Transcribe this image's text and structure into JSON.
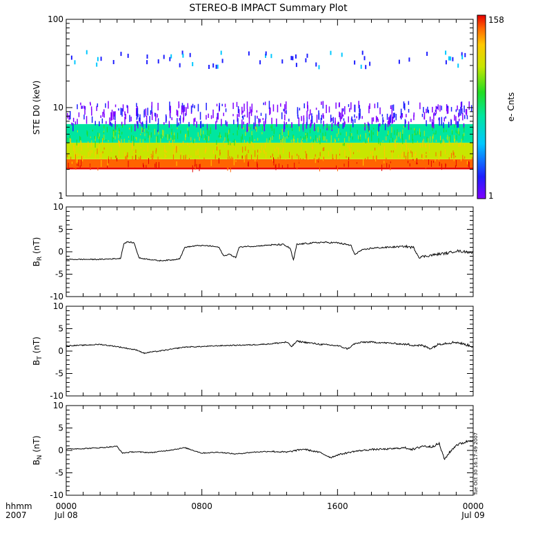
{
  "title": "STEREO-B IMPACT Summary Plot",
  "stamp": "Tue Oct 30 16:17:49 2007",
  "time_axis": {
    "row1_label": "hhmm",
    "row2_label": "2007",
    "ticks": [
      {
        "hour": 0,
        "time": "0000",
        "date": "Jul 08"
      },
      {
        "hour": 8,
        "time": "0800",
        "date": ""
      },
      {
        "hour": 16,
        "time": "1600",
        "date": ""
      },
      {
        "hour": 24,
        "time": "0000",
        "date": "Jul 09"
      }
    ],
    "range_hours": [
      0,
      24
    ]
  },
  "colorbar": {
    "label": "e- Cnts",
    "max_label": "158",
    "min_label": "1",
    "range": [
      1,
      158
    ]
  },
  "chart_data": [
    {
      "type": "heatmap",
      "ylabel": "STE D0 (keV)",
      "yscale": "log",
      "ylim": [
        1,
        100
      ],
      "yticks": [
        "1",
        "10",
        "100"
      ],
      "xlim_hours": [
        0,
        24
      ],
      "description_bands": [
        {
          "energy_keV": [
            2.0,
            2.1
          ],
          "counts": 158
        },
        {
          "energy_keV": [
            2.1,
            2.6
          ],
          "counts": 90
        },
        {
          "energy_keV": [
            2.6,
            4.0
          ],
          "counts": 30
        },
        {
          "energy_keV": [
            4.0,
            6.5
          ],
          "counts": 8
        },
        {
          "energy_keV": [
            6.5,
            12
          ],
          "counts": 2
        },
        {
          "energy_keV": [
            30,
            45
          ],
          "counts": 3
        }
      ]
    },
    {
      "type": "line",
      "ylabel": "B",
      "ylabel_sub": "R",
      "yunit": "(nT)",
      "ylim": [
        -10,
        10
      ],
      "yticks": [
        "-10",
        "-5",
        "0",
        "5",
        "10"
      ],
      "x_hours": [
        0,
        2,
        3.2,
        3.4,
        3.6,
        4.0,
        4.3,
        5.5,
        6.3,
        6.7,
        7.0,
        7.8,
        8.5,
        9.0,
        9.3,
        9.6,
        10.0,
        10.2,
        10.6,
        11.0,
        12.0,
        12.8,
        13.2,
        13.4,
        13.6,
        14.0,
        15.0,
        16.0,
        16.8,
        17.0,
        17.4,
        18.0,
        19.0,
        20.0,
        20.5,
        20.8,
        21.5,
        22.0,
        22.5,
        23.0,
        23.5,
        24.0
      ],
      "values": [
        -1.7,
        -1.7,
        -1.5,
        1.8,
        2.2,
        2.0,
        -1.4,
        -2.0,
        -1.8,
        -1.5,
        1.0,
        1.4,
        1.3,
        1.0,
        -1.0,
        -0.5,
        -1.3,
        1.0,
        1.2,
        1.2,
        1.5,
        1.6,
        0.8,
        -1.9,
        1.6,
        1.8,
        2.1,
        2.0,
        1.4,
        -0.6,
        0.3,
        0.8,
        1.0,
        1.2,
        0.9,
        -1.2,
        -0.8,
        -0.5,
        -0.3,
        0.2,
        0.0,
        -0.2
      ]
    },
    {
      "type": "line",
      "ylabel": "B",
      "ylabel_sub": "T",
      "yunit": "(nT)",
      "ylim": [
        -10,
        10
      ],
      "yticks": [
        "-10",
        "-5",
        "0",
        "5",
        "10"
      ],
      "x_hours": [
        0,
        1.0,
        2.0,
        3.0,
        3.6,
        4.2,
        4.6,
        5.0,
        5.5,
        6.0,
        7.0,
        8.0,
        9.0,
        10.0,
        11.0,
        12.0,
        13.0,
        13.3,
        13.6,
        14.0,
        15.0,
        16.0,
        16.6,
        17.0,
        17.5,
        18.0,
        19.0,
        20.0,
        21.0,
        21.5,
        22.0,
        22.5,
        23.0,
        23.5,
        24.0
      ],
      "values": [
        1.2,
        1.3,
        1.5,
        1.0,
        0.6,
        0.2,
        -0.5,
        -0.2,
        0.0,
        0.3,
        0.9,
        1.0,
        1.2,
        1.3,
        1.4,
        1.6,
        2.0,
        1.0,
        2.2,
        2.0,
        1.5,
        1.2,
        0.5,
        1.6,
        2.0,
        2.0,
        1.8,
        1.5,
        1.2,
        0.6,
        1.6,
        1.8,
        2.0,
        1.5,
        1.0
      ]
    },
    {
      "type": "line",
      "ylabel": "B",
      "ylabel_sub": "N",
      "yunit": "(nT)",
      "ylim": [
        -10,
        10
      ],
      "yticks": [
        "-10",
        "-5",
        "0",
        "5",
        "10"
      ],
      "x_hours": [
        0,
        1.0,
        2.0,
        3.0,
        3.3,
        4.0,
        5.0,
        6.0,
        7.0,
        8.0,
        9.0,
        10.0,
        11.0,
        12.0,
        13.0,
        14.0,
        15.0,
        15.6,
        16.0,
        17.0,
        18.0,
        19.0,
        20.0,
        20.5,
        21.0,
        21.5,
        22.0,
        22.3,
        22.6,
        23.0,
        23.5,
        24.0
      ],
      "values": [
        0.3,
        0.4,
        0.6,
        0.9,
        -0.6,
        -0.3,
        -0.5,
        0.0,
        0.6,
        -0.6,
        -0.4,
        -0.8,
        -0.4,
        -0.2,
        -0.4,
        0.3,
        -0.5,
        -1.6,
        -1.0,
        -0.2,
        0.2,
        0.3,
        0.6,
        0.2,
        1.0,
        0.8,
        1.5,
        -2.0,
        -0.5,
        1.2,
        1.8,
        2.5
      ]
    }
  ]
}
